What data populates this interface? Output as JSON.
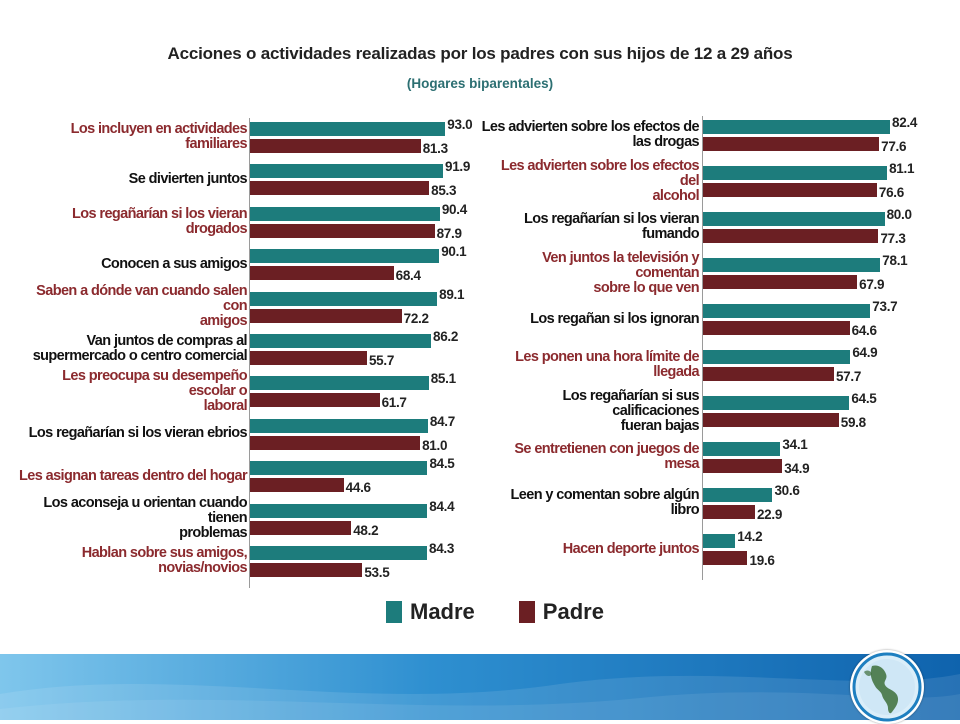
{
  "header": {
    "title": "Acciones o actividades realizadas por los padres con sus hijos de 12 a 29 años",
    "subtitle": "(Hogares biparentales)"
  },
  "legend": {
    "madre": "Madre",
    "padre": "Padre"
  },
  "colors": {
    "madre": "#1d7c7c",
    "padre": "#6b1f23",
    "label_red": "#8b2a2e",
    "label_dark": "#111111"
  },
  "chart_data": [
    {
      "type": "bar",
      "orientation": "horizontal",
      "xlim": [
        0,
        100
      ],
      "categories": [
        {
          "label": "Los incluyen en actividades familiares",
          "style": "red"
        },
        {
          "label": "Se divierten juntos",
          "style": "dark"
        },
        {
          "label": "Los regañarían si los vieran drogados",
          "style": "red"
        },
        {
          "label": "Conocen a sus amigos",
          "style": "dark"
        },
        {
          "label": "Saben a dónde van cuando salen con amigos",
          "style": "red"
        },
        {
          "label": "Van juntos de compras al supermercado o centro comercial",
          "style": "dark"
        },
        {
          "label": "Les preocupa su desempeño escolar o laboral",
          "style": "red"
        },
        {
          "label": "Los regañarían si los vieran ebrios",
          "style": "dark"
        },
        {
          "label": "Les asignan tareas dentro del hogar",
          "style": "red"
        },
        {
          "label": "Los aconseja u orientan cuando tienen problemas",
          "style": "dark"
        },
        {
          "label": "Hablan sobre sus amigos, novias/novios",
          "style": "red"
        }
      ],
      "series": [
        {
          "name": "Madre",
          "values": [
            93.0,
            91.9,
            90.4,
            90.1,
            89.1,
            86.2,
            85.1,
            84.7,
            84.5,
            84.4,
            84.3
          ]
        },
        {
          "name": "Padre",
          "values": [
            81.3,
            85.3,
            87.9,
            68.4,
            72.2,
            55.7,
            61.7,
            81.0,
            44.6,
            48.2,
            53.5
          ]
        }
      ]
    },
    {
      "type": "bar",
      "orientation": "horizontal",
      "xlim": [
        0,
        100
      ],
      "categories": [
        {
          "label": "Les advierten sobre los efectos de las drogas",
          "style": "dark"
        },
        {
          "label": "Les advierten sobre los efectos del alcohol",
          "style": "red"
        },
        {
          "label": "Los regañarían si los vieran fumando",
          "style": "dark"
        },
        {
          "label": "Ven juntos la televisión y comentan sobre lo que ven",
          "style": "red"
        },
        {
          "label": "Los regañan si los ignoran",
          "style": "dark"
        },
        {
          "label": "Les ponen una hora límite de llegada",
          "style": "red"
        },
        {
          "label": "Los regañarían si sus calificaciones fueran bajas",
          "style": "dark"
        },
        {
          "label": "Se entretienen con juegos de mesa",
          "style": "red"
        },
        {
          "label": "Leen y comentan sobre algún libro",
          "style": "dark"
        },
        {
          "label": "Hacen deporte juntos",
          "style": "red"
        }
      ],
      "series": [
        {
          "name": "Madre",
          "values": [
            82.4,
            81.1,
            80.0,
            78.1,
            73.7,
            64.9,
            64.5,
            34.1,
            30.6,
            14.2
          ]
        },
        {
          "name": "Padre",
          "values": [
            77.6,
            76.6,
            77.3,
            67.9,
            64.6,
            57.7,
            59.8,
            34.9,
            22.9,
            19.6
          ]
        }
      ]
    }
  ]
}
